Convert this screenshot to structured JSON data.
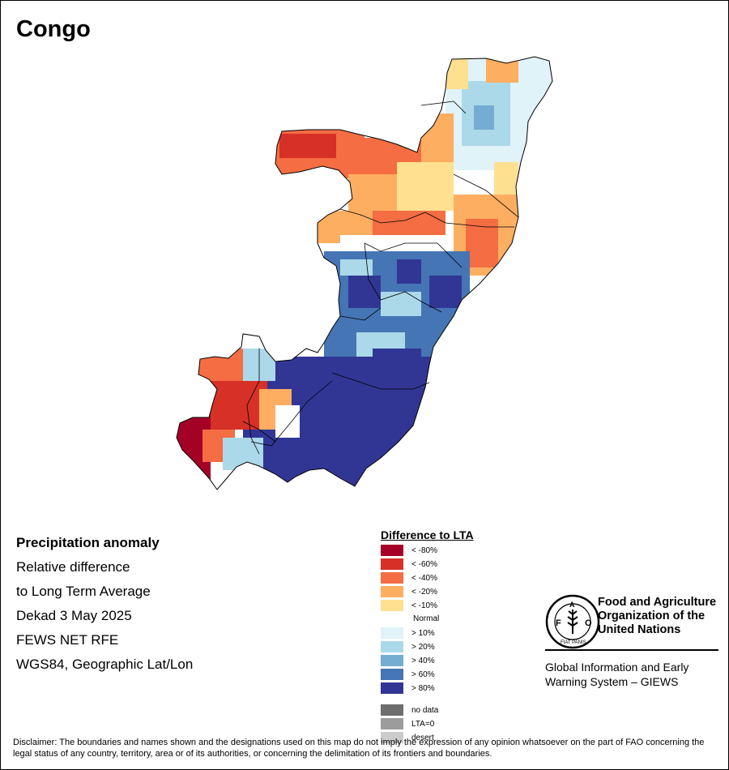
{
  "title": "Congo",
  "info": {
    "heading": "Precipitation anomaly",
    "lines": [
      "Relative difference",
      "to Long Term Average",
      "Dekad 3 May 2025",
      "FEWS NET RFE",
      "WGS84, Geographic Lat/Lon"
    ]
  },
  "legend": {
    "title": "Difference to LTA",
    "items": [
      {
        "label": "< -80%",
        "color": "#a50026"
      },
      {
        "label": "< -60%",
        "color": "#d73027"
      },
      {
        "label": "< -40%",
        "color": "#f46d43"
      },
      {
        "label": "< -20%",
        "color": "#fdae61"
      },
      {
        "label": "< -10%",
        "color": "#fee090"
      },
      {
        "label": "Normal",
        "color": "#ffffff"
      },
      {
        "label": "> 10%",
        "color": "#e0f3f8"
      },
      {
        "label": "> 20%",
        "color": "#abd9e9"
      },
      {
        "label": "> 40%",
        "color": "#74add1"
      },
      {
        "label": "> 60%",
        "color": "#4575b4"
      },
      {
        "label": "> 80%",
        "color": "#313695"
      }
    ],
    "extra": [
      {
        "label": "no data",
        "color": "#6e6e6e"
      },
      {
        "label": "LTA=0",
        "color": "#9c9c9c"
      },
      {
        "label": "desert",
        "color": "#cccccc"
      }
    ]
  },
  "logo": {
    "top": "FAO",
    "bottom": "FIAT PANIS",
    "icon": "fao-wheat-logo"
  },
  "org": {
    "lines": [
      "Food and Agriculture",
      "Organization of the",
      "United Nations"
    ]
  },
  "giews": {
    "lines": [
      "Global Information and Early",
      "Warning System – GIEWS"
    ]
  },
  "disclaimer": "Disclaimer: The boundaries and names shown and the designations used on this map do not imply the expression of any opinion whatsoever on the part of FAO concerning the legal status of any country, territory, area or of its authorities, or concerning the delimitation of its frontiers and boundaries."
}
